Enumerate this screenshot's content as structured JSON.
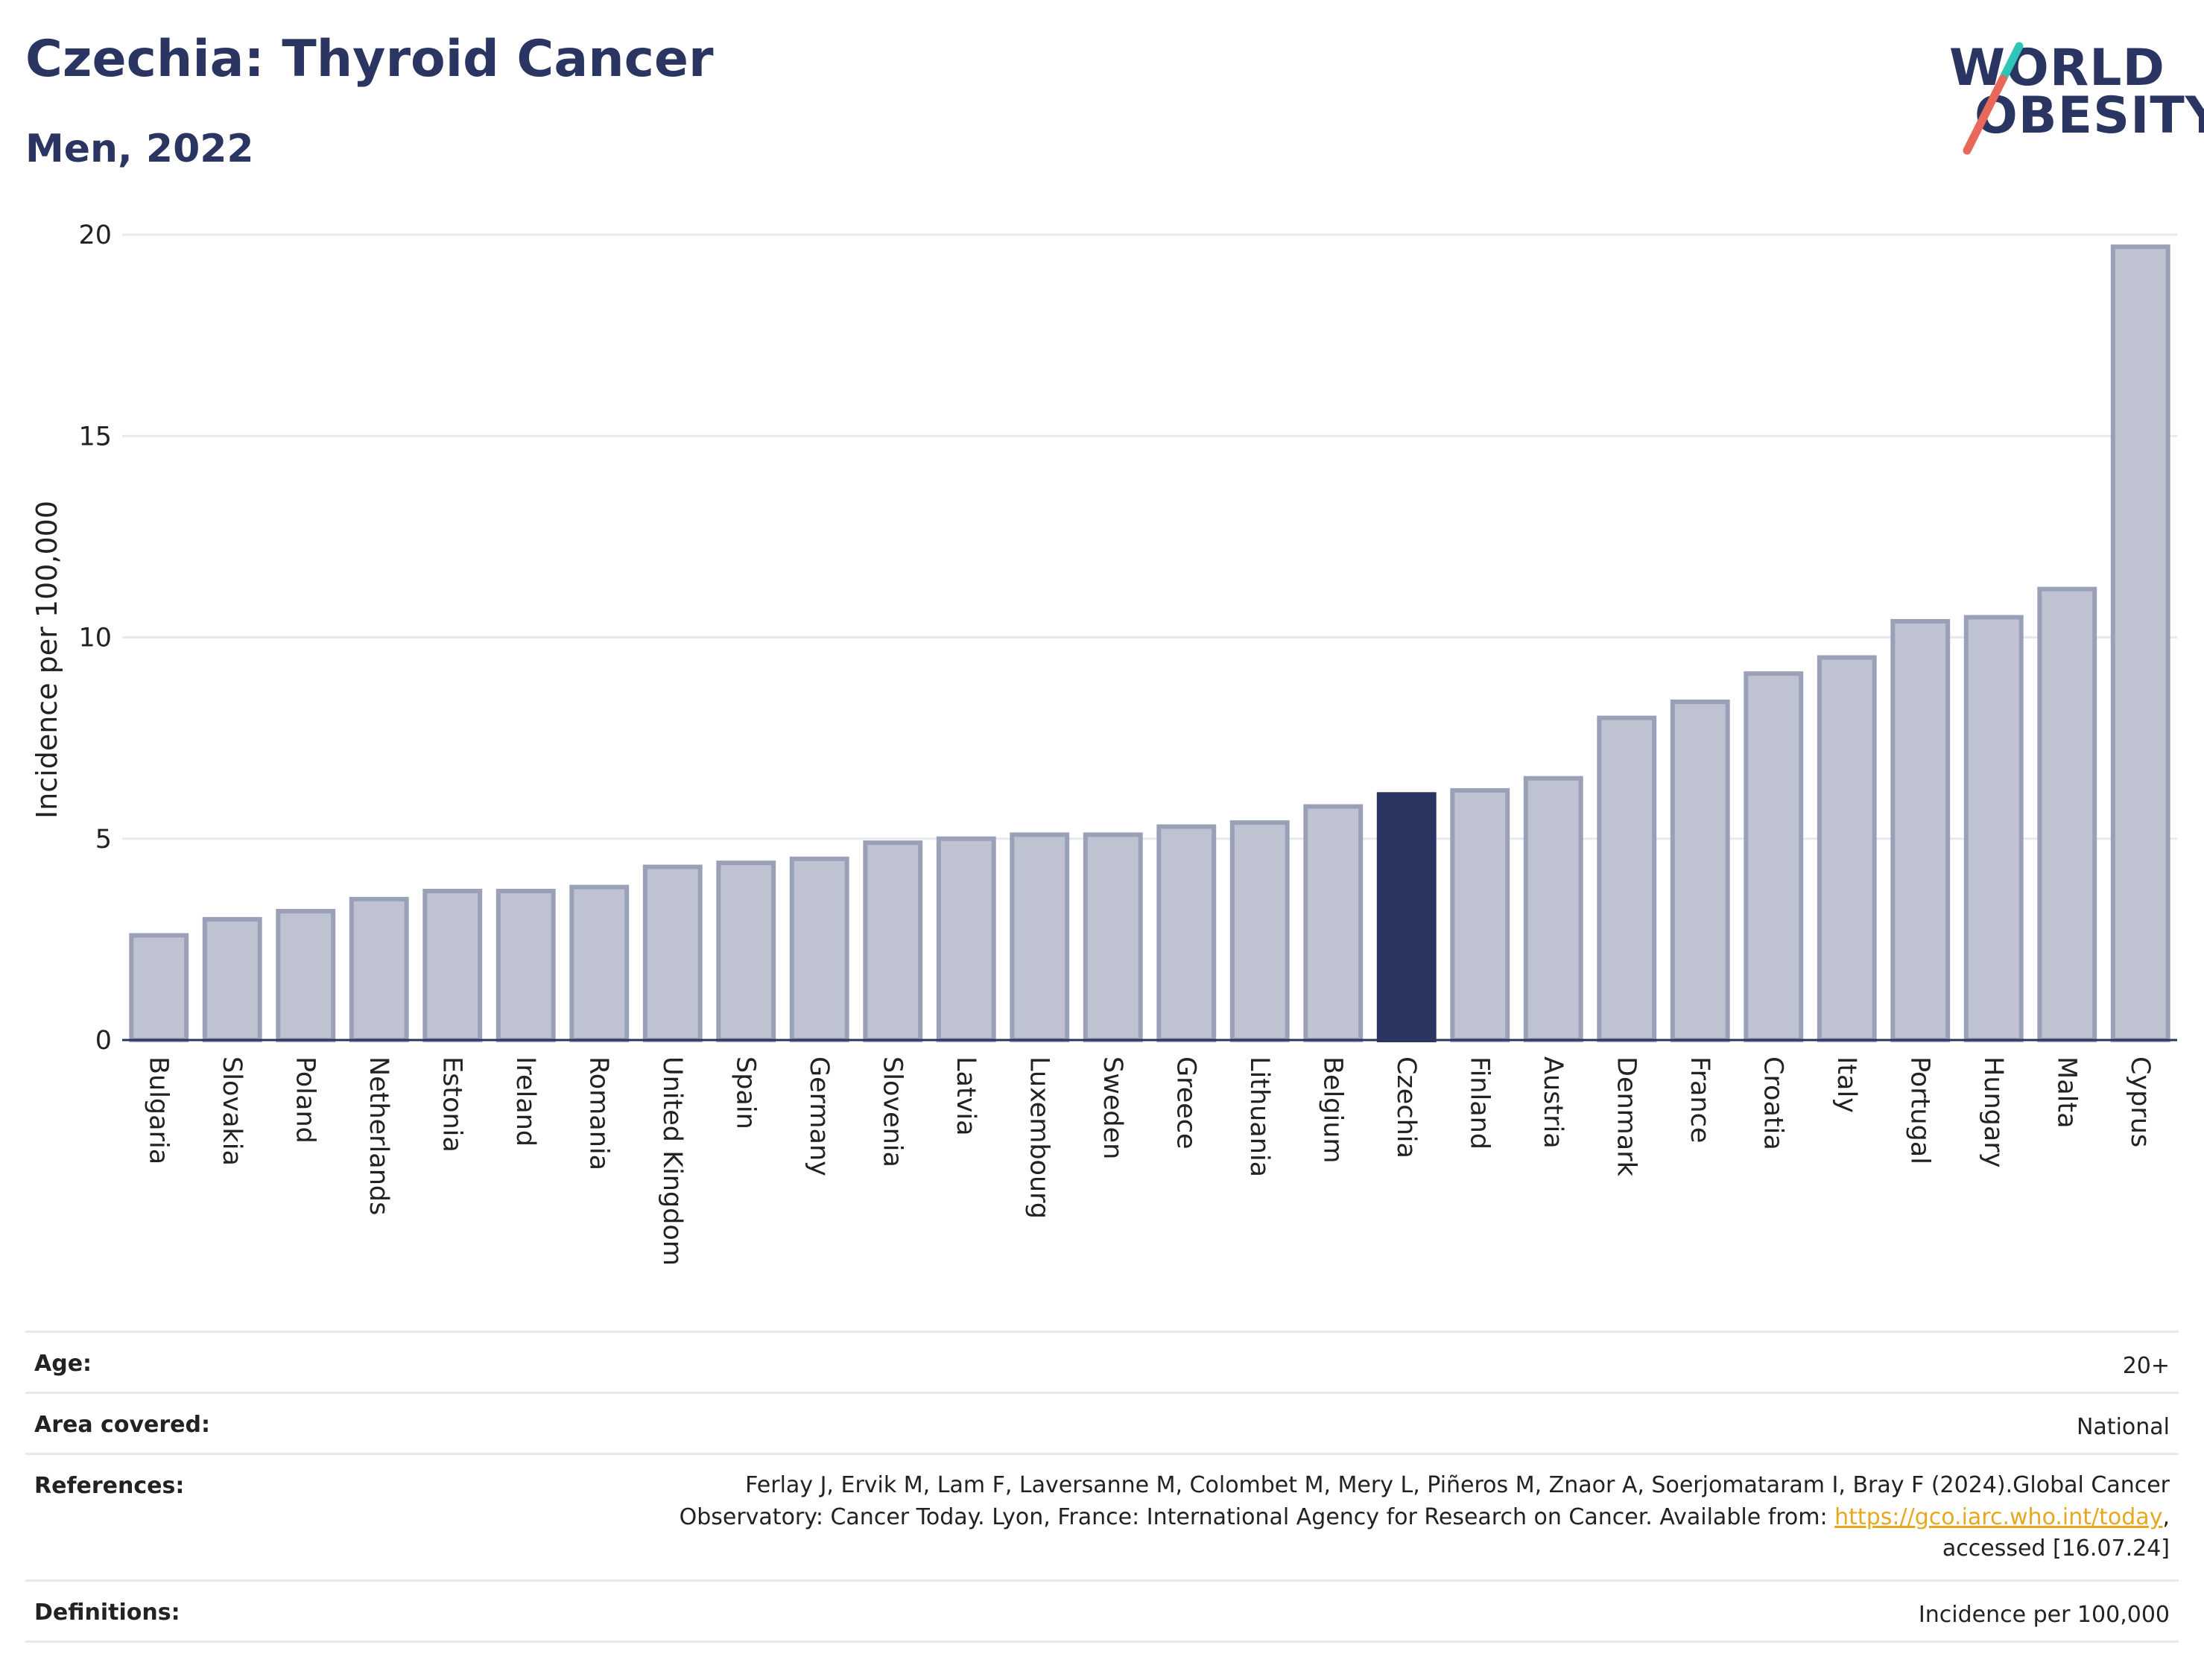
{
  "header": {
    "title": "Czechia: Thyroid Cancer",
    "subtitle": "Men, 2022"
  },
  "logo": {
    "line1": "WORLD",
    "line2": "OBESITY",
    "slash_colors": [
      "#2ec4b6",
      "#e8685a"
    ]
  },
  "colors": {
    "bar": "#bfc3d1",
    "bar_stroke": "#9aa0b8",
    "highlight": "#2b3562",
    "grid": "#e6e9ef",
    "axis": "#2b3562"
  },
  "chart_data": {
    "type": "bar",
    "ylabel": "Incidence per 100,000",
    "ylim": [
      0,
      20
    ],
    "yticks": [
      0,
      5,
      10,
      15,
      20
    ],
    "grid": true,
    "highlight": "Czechia",
    "categories": [
      "Bulgaria",
      "Slovakia",
      "Poland",
      "Netherlands",
      "Estonia",
      "Ireland",
      "Romania",
      "United Kingdom",
      "Spain",
      "Germany",
      "Slovenia",
      "Latvia",
      "Luxembourg",
      "Sweden",
      "Greece",
      "Lithuania",
      "Belgium",
      "Czechia",
      "Finland",
      "Austria",
      "Denmark",
      "France",
      "Croatia",
      "Italy",
      "Portugal",
      "Hungary",
      "Malta",
      "Cyprus"
    ],
    "values": [
      2.6,
      3.0,
      3.2,
      3.5,
      3.7,
      3.7,
      3.8,
      4.3,
      4.4,
      4.5,
      4.9,
      5.0,
      5.1,
      5.1,
      5.3,
      5.4,
      5.8,
      6.1,
      6.2,
      6.5,
      8.0,
      8.4,
      9.1,
      9.5,
      10.4,
      10.5,
      11.2,
      19.7
    ]
  },
  "meta": {
    "age": {
      "label": "Age:",
      "value": "20+"
    },
    "area": {
      "label": "Area covered:",
      "value": "National"
    },
    "references": {
      "label": "References:",
      "line1": "Ferlay J, Ervik M, Lam F, Laversanne M, Colombet M, Mery L, Piñeros M, Znaor A, Soerjomataram I, Bray F (2024).Global Cancer",
      "line2_pre": "Observatory: Cancer Today. Lyon, France: International Agency for Research on Cancer. Available from: ",
      "link": "https://gco.iarc.who.int/today",
      "line2_post": ",",
      "line3": "accessed [16.07.24]"
    },
    "definitions": {
      "label": "Definitions:",
      "value": "Incidence per 100,000"
    }
  }
}
